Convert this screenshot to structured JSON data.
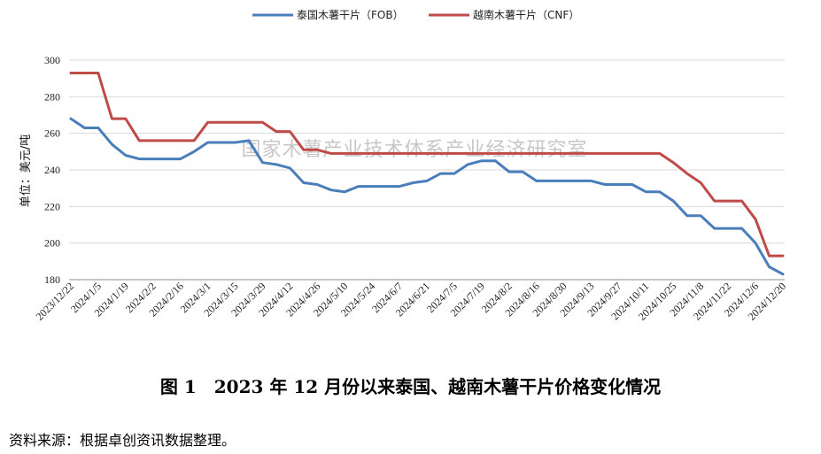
{
  "chart_data": {
    "type": "line",
    "ylabel": "单位：美元/吨",
    "ylim": [
      180,
      300
    ],
    "yticks": [
      180,
      200,
      220,
      240,
      260,
      280,
      300
    ],
    "grid": "horizontal",
    "legend_position": "top-center",
    "watermark": "国家木薯产业技术体系产业经济研究室",
    "x": [
      "2023/12/22",
      "2023/12/29",
      "2024/1/5",
      "2024/1/12",
      "2024/1/19",
      "2024/1/26",
      "2024/2/2",
      "2024/2/9",
      "2024/2/16",
      "2024/2/23",
      "2024/3/1",
      "2024/3/8",
      "2024/3/15",
      "2024/3/22",
      "2024/3/29",
      "2024/4/5",
      "2024/4/12",
      "2024/4/19",
      "2024/4/26",
      "2024/5/3",
      "2024/5/10",
      "2024/5/17",
      "2024/5/24",
      "2024/5/31",
      "2024/6/7",
      "2024/6/14",
      "2024/6/21",
      "2024/6/28",
      "2024/7/5",
      "2024/7/12",
      "2024/7/19",
      "2024/7/26",
      "2024/8/2",
      "2024/8/9",
      "2024/8/16",
      "2024/8/23",
      "2024/8/30",
      "2024/9/6",
      "2024/9/13",
      "2024/9/20",
      "2024/9/27",
      "2024/10/4",
      "2024/10/11",
      "2024/10/18",
      "2024/10/25",
      "2024/11/1",
      "2024/11/8",
      "2024/11/15",
      "2024/11/22",
      "2024/11/29",
      "2024/12/6",
      "2024/12/13",
      "2024/12/20"
    ],
    "xtick_labels": [
      "2023/12/22",
      "2024/1/5",
      "2024/1/19",
      "2024/2/2",
      "2024/2/16",
      "2024/3/1",
      "2024/3/15",
      "2024/3/29",
      "2024/4/12",
      "2024/4/26",
      "2024/5/10",
      "2024/5/24",
      "2024/6/7",
      "2024/6/21",
      "2024/7/5",
      "2024/7/19",
      "2024/8/2",
      "2024/8/16",
      "2024/8/30",
      "2024/9/13",
      "2024/9/27",
      "2024/10/11",
      "2024/10/25",
      "2024/11/8",
      "2024/11/22",
      "2024/12/6",
      "2024/12/20"
    ],
    "series": [
      {
        "name": "泰国木薯干片（FOB）",
        "color": "#4a7ebb",
        "values": [
          268,
          263,
          263,
          254,
          248,
          246,
          246,
          246,
          246,
          250,
          255,
          255,
          255,
          256,
          244,
          243,
          241,
          233,
          232,
          229,
          228,
          231,
          231,
          231,
          231,
          233,
          234,
          238,
          238,
          243,
          245,
          245,
          239,
          239,
          234,
          234,
          234,
          234,
          234,
          232,
          232,
          232,
          228,
          228,
          223,
          215,
          215,
          208,
          208,
          208,
          200,
          187,
          183
        ]
      },
      {
        "name": "越南木薯干片（CNF）",
        "color": "#be4b48",
        "values": [
          293,
          293,
          293,
          268,
          268,
          256,
          256,
          256,
          256,
          256,
          266,
          266,
          266,
          266,
          266,
          261,
          261,
          251,
          251,
          249,
          249,
          249,
          249,
          249,
          249,
          249,
          249,
          249,
          249,
          249,
          249,
          249,
          249,
          249,
          249,
          249,
          249,
          249,
          249,
          249,
          249,
          249,
          249,
          249,
          244,
          238,
          233,
          223,
          223,
          223,
          213,
          193,
          193
        ]
      }
    ]
  },
  "caption": "图 1　2023 年 12 月份以来泰国、越南木薯干片价格变化情况",
  "source": "资料来源：根据卓创资讯数据整理。"
}
